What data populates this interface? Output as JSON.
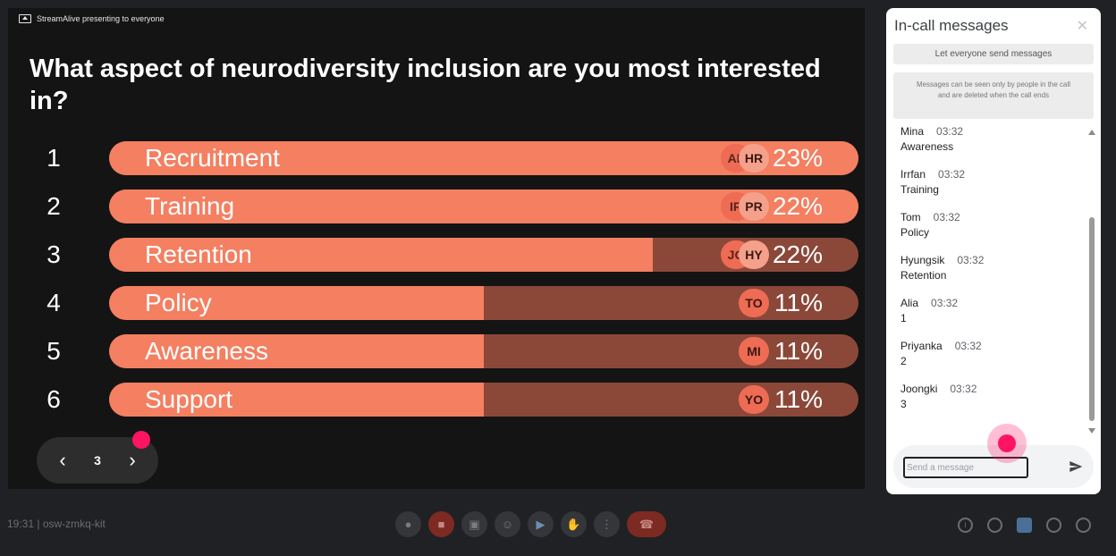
{
  "presenting_label": "StreamAlive presenting to everyone",
  "question": "What aspect of neurodiversity inclusion are you most interested in?",
  "poll": [
    {
      "num": "1",
      "label": "Recruitment",
      "fill": 1.0,
      "avatars": [
        "AL",
        "HR"
      ],
      "pct": "23%"
    },
    {
      "num": "2",
      "label": "Training",
      "fill": 1.0,
      "avatars": [
        "IR",
        "PR"
      ],
      "pct": "22%"
    },
    {
      "num": "3",
      "label": "Retention",
      "fill": 0.726,
      "avatars": [
        "JO",
        "HY"
      ],
      "pct": "22%"
    },
    {
      "num": "4",
      "label": "Policy",
      "fill": 0.5,
      "avatars": [
        "TO"
      ],
      "pct": "11%"
    },
    {
      "num": "5",
      "label": "Awareness",
      "fill": 0.5,
      "avatars": [
        "MI"
      ],
      "pct": "11%"
    },
    {
      "num": "6",
      "label": "Support",
      "fill": 0.5,
      "avatars": [
        "YO"
      ],
      "pct": "11%"
    }
  ],
  "pager": {
    "page": "3",
    "prev_icon": "chevron-left-icon",
    "next_icon": "chevron-right-icon"
  },
  "panel": {
    "title": "In-call messages",
    "close_icon": "close-icon",
    "send_toggle": "Let everyone send messages",
    "notice": "Messages can be seen only by people in the call and are deleted when the call ends",
    "input_placeholder": "Send a message",
    "messages": [
      {
        "who": "Mina",
        "time": "03:32",
        "text": "Awareness"
      },
      {
        "who": "Irrfan",
        "time": "03:32",
        "text": "Training"
      },
      {
        "who": "Tom",
        "time": "03:32",
        "text": "Policy"
      },
      {
        "who": "Hyungsik",
        "time": "03:32",
        "text": "Retention"
      },
      {
        "who": "Alia",
        "time": "03:32",
        "text": "1"
      },
      {
        "who": "Priyanka",
        "time": "03:32",
        "text": "2"
      },
      {
        "who": "Joongki",
        "time": "03:32",
        "text": "3"
      }
    ]
  },
  "bottombar": {
    "meeting_info": "19:31 | osw-zmkq-kit"
  },
  "colors": {
    "bar_fill": "#f47f61",
    "bar_track": "#8b4839",
    "accent_dot": "#ff1463"
  }
}
